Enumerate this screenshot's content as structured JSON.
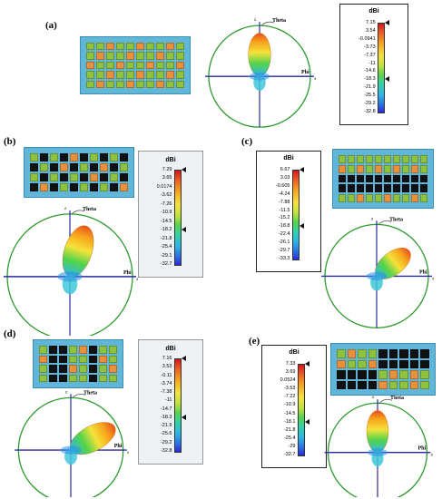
{
  "panels": [
    {
      "id": "a",
      "label": "(a)",
      "rows": 5,
      "cols": 10,
      "pattern": [
        "GGOGGOGGOG",
        "GOGGOGGOGG",
        "OGGOGGOGGO",
        "GGOGGOGGOG",
        "GOGGOGGOGG"
      ],
      "colorbar": {
        "title": "dBi",
        "labels": [
          "7.15",
          "3.54",
          "-0.0941",
          "-3.73",
          "-7.37",
          "-11",
          "-14.6",
          "-18.3",
          "-21.9",
          "-25.5",
          "-29.2",
          "-32.8"
        ]
      },
      "axes": {
        "theta": "Theta",
        "phi": "Phi",
        "z": "z",
        "x": "x"
      }
    },
    {
      "id": "b",
      "label": "(b)",
      "rows": 4,
      "cols": 10,
      "pattern": [
        "GKGKOKGKGK",
        "KGKOKGKOKG",
        "GKGKGKOKGK",
        "KOKGKGKGKO"
      ],
      "colorbar": {
        "title": "dBi",
        "labels": [
          "7.29",
          "3.65",
          "0.0174",
          "-3.62",
          "-7.26",
          "-10.9",
          "-14.5",
          "-18.2",
          "-21.8",
          "-25.4",
          "-29.1",
          "-32.7"
        ]
      },
      "axes": {
        "theta": "Theta",
        "phi": "Phi",
        "z": "z",
        "x": "x"
      }
    },
    {
      "id": "c",
      "label": "(c)",
      "rows": 5,
      "cols": 10,
      "pattern": [
        "GGGGGGGGGG",
        "OGOGOGOGOG",
        "KKKKKKKKKK",
        "KKKKKKKKKK",
        "GGOGGOGGOG"
      ],
      "colorbar": {
        "title": "dBi",
        "labels": [
          "6.67",
          "3.03",
          "-0.605",
          "-4.24",
          "-7.88",
          "-11.5",
          "-15.2",
          "-18.8",
          "-22.4",
          "-26.1",
          "-29.7",
          "-33.3"
        ]
      },
      "axes": {
        "theta": "Theta",
        "phi": "Phi",
        "z": "z",
        "x": "x"
      }
    },
    {
      "id": "d",
      "label": "(d)",
      "rows": 4,
      "cols": 8,
      "pattern": [
        "GKKGOKGG",
        "OKKGGKOG",
        "GKKOGKGO",
        "GKKGGKGG"
      ],
      "colorbar": {
        "title": "dBi",
        "labels": [
          "7.16",
          "3.53",
          "-0.11",
          "-3.74",
          "-7.38",
          "-11",
          "-14.7",
          "-18.3",
          "-21.9",
          "-25.6",
          "-29.2",
          "-32.8"
        ]
      },
      "axes": {
        "theta": "Theta",
        "phi": "Phi",
        "z": "z",
        "x": "x"
      }
    },
    {
      "id": "e",
      "label": "(e)",
      "rows": 4,
      "cols": 9,
      "pattern": [
        "GOGGKKKKK",
        "OGGOKKKKK",
        "KKKKGOGOG",
        "KKKKOGGOG"
      ],
      "colorbar": {
        "title": "dBi",
        "labels": [
          "7.33",
          "3.69",
          "0.0524",
          "-3.53",
          "-7.22",
          "-10.9",
          "-14.5",
          "-18.1",
          "-21.8",
          "-25.4",
          "-29",
          "-32.7"
        ]
      },
      "axes": {
        "theta": "Theta",
        "phi": "Phi",
        "z": "z",
        "x": "x"
      }
    }
  ],
  "colors": {
    "cell_green": "#8fc23f",
    "cell_orange": "#e8903a",
    "cell_black": "#111111",
    "substrate": "#5fb6d8",
    "circle": "#2e9a2e",
    "axis": "#2a2aa0"
  }
}
